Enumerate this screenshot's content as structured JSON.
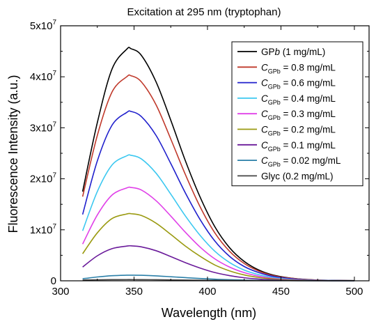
{
  "chart_data": {
    "type": "line",
    "title": "Excitation at 295 nm (tryptophan)",
    "xlabel": "Wavelength (nm)",
    "ylabel": "Fluorescence Intensity (a.u.)",
    "xlim": [
      300,
      510
    ],
    "ylim": [
      0,
      50000000
    ],
    "xticks": [
      300,
      350,
      400,
      450,
      500
    ],
    "yticks": [
      {
        "value": 0,
        "mantissa": "0",
        "exponent": ""
      },
      {
        "value": 10000000,
        "mantissa": "1x10",
        "exponent": "7"
      },
      {
        "value": 20000000,
        "mantissa": "2x10",
        "exponent": "7"
      },
      {
        "value": 30000000,
        "mantissa": "3x10",
        "exponent": "7"
      },
      {
        "value": 40000000,
        "mantissa": "4x10",
        "exponent": "7"
      },
      {
        "value": 50000000,
        "mantissa": "5x10",
        "exponent": "7"
      }
    ],
    "grid": false,
    "legend_position": "top-right",
    "x": [
      315,
      325,
      335,
      345,
      348,
      355,
      365,
      375,
      385,
      395,
      405,
      415,
      425,
      435,
      445,
      455,
      465,
      475,
      485,
      500
    ],
    "series": [
      {
        "legend_main": "GP",
        "legend_italic": "b",
        "legend_sub": "",
        "legend_rest": " (1 mg/mL)",
        "color": "#000000",
        "values": [
          17500000,
          31000000,
          41500000,
          45400000,
          45500000,
          44200000,
          39000000,
          31500000,
          23500000,
          16400000,
          10600000,
          6500000,
          3800000,
          2100000,
          1100000,
          600000,
          300000,
          150000,
          80000,
          40000
        ]
      },
      {
        "legend_main": "C",
        "legend_italic": "C",
        "legend_sub": "GPb",
        "legend_rest": " = 0.8 mg/mL",
        "color": "#c0392b",
        "values": [
          16500000,
          28500000,
          37000000,
          40000000,
          40200000,
          39000000,
          34500000,
          27800000,
          20800000,
          14500000,
          9400000,
          5800000,
          3400000,
          1900000,
          1000000,
          550000,
          280000,
          140000,
          70000,
          35000
        ]
      },
      {
        "legend_main": "C",
        "legend_italic": "C",
        "legend_sub": "GPb",
        "legend_rest": " = 0.6 mg/mL",
        "color": "#1f1fcc",
        "values": [
          13000000,
          23500000,
          30500000,
          33000000,
          33200000,
          32200000,
          28500000,
          23000000,
          17200000,
          12000000,
          7800000,
          4800000,
          2800000,
          1600000,
          850000,
          450000,
          230000,
          115000,
          60000,
          30000
        ]
      },
      {
        "legend_main": "C",
        "legend_italic": "C",
        "legend_sub": "GPb",
        "legend_rest": " = 0.4 mg/mL",
        "color": "#3cc8f0",
        "values": [
          9800000,
          17500000,
          22700000,
          24500000,
          24600000,
          23900000,
          21100000,
          17000000,
          12700000,
          8900000,
          5800000,
          3600000,
          2100000,
          1200000,
          650000,
          340000,
          170000,
          90000,
          45000,
          22000
        ]
      },
      {
        "legend_main": "C",
        "legend_italic": "C",
        "legend_sub": "GPb",
        "legend_rest": " = 0.3 mg/mL",
        "color": "#e040e8",
        "values": [
          7200000,
          12900000,
          16800000,
          18200000,
          18300000,
          17800000,
          15700000,
          12700000,
          9500000,
          6600000,
          4300000,
          2700000,
          1600000,
          900000,
          480000,
          250000,
          130000,
          65000,
          33000,
          16000
        ]
      },
      {
        "legend_main": "C",
        "legend_italic": "C",
        "legend_sub": "GPb",
        "legend_rest": " = 0.2 mg/mL",
        "color": "#9a9a10",
        "values": [
          5300000,
          9400000,
          12200000,
          13100000,
          13150000,
          12800000,
          11300000,
          9100000,
          6800000,
          4800000,
          3100000,
          1950000,
          1150000,
          650000,
          350000,
          180000,
          90000,
          45000,
          22000,
          11000
        ]
      },
      {
        "legend_main": "C",
        "legend_italic": "C",
        "legend_sub": "GPb",
        "legend_rest": " = 0.1 mg/mL",
        "color": "#6a1a9a",
        "values": [
          2700000,
          4900000,
          6300000,
          6800000,
          6850000,
          6650000,
          5900000,
          4750000,
          3550000,
          2500000,
          1620000,
          1020000,
          600000,
          340000,
          180000,
          95000,
          48000,
          24000,
          12000,
          6000
        ]
      },
      {
        "legend_main": "C",
        "legend_italic": "C",
        "legend_sub": "GPb",
        "legend_rest": " = 0.02 mg/mL",
        "color": "#2a7fa8",
        "values": [
          400000,
          750000,
          1000000,
          1100000,
          1100000,
          1080000,
          970000,
          800000,
          620000,
          450000,
          310000,
          210000,
          140000,
          90000,
          60000,
          40000,
          28000,
          20000,
          15000,
          10000
        ]
      },
      {
        "legend_main": "Glyc (0.2 mg/mL)",
        "legend_italic": "",
        "legend_sub": "",
        "legend_rest": "",
        "color": "#444444",
        "values": [
          150000,
          200000,
          230000,
          240000,
          240000,
          235000,
          215000,
          185000,
          150000,
          120000,
          95000,
          75000,
          60000,
          50000,
          42000,
          36000,
          32000,
          29000,
          27000,
          25000
        ]
      }
    ]
  }
}
